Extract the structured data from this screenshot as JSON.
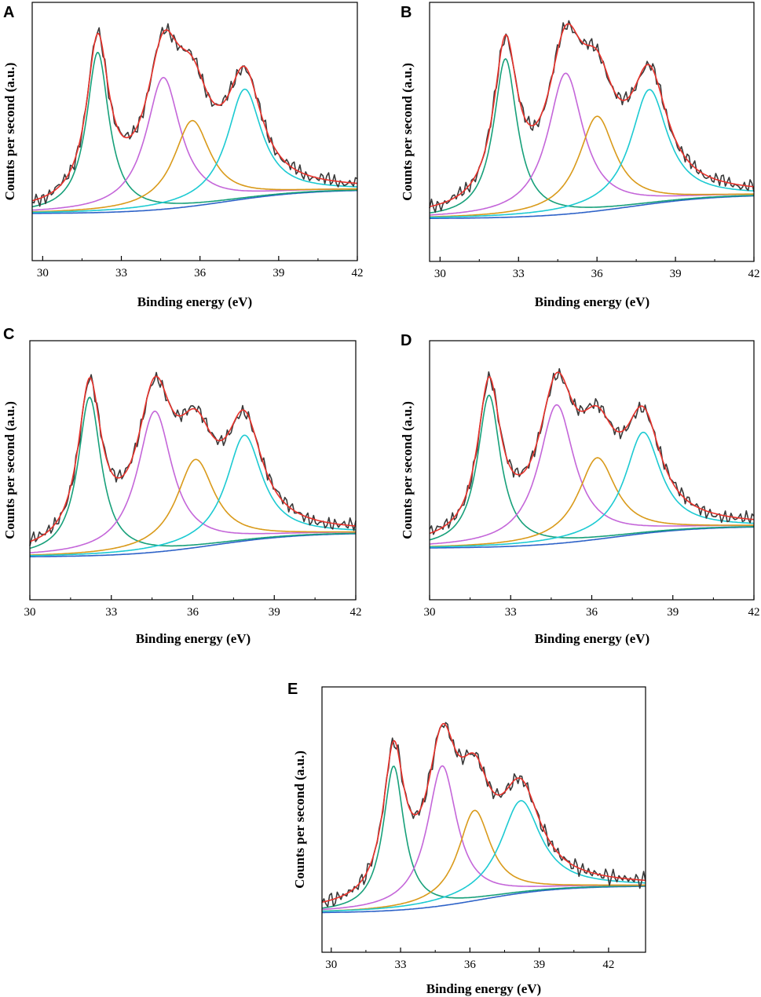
{
  "figure": {
    "description_colors": {
      "raw": "#3a3a3a",
      "envelope": "#e8322b",
      "peak1": "#17a07a",
      "peak2": "#c466d9",
      "peak3": "#d99a1a",
      "peak4": "#1ccad2",
      "background": "#2d62c8"
    }
  },
  "chart_data": [
    {
      "panel": "A",
      "type": "line",
      "xlabel": "Binding energy (eV)",
      "ylabel": "Counts per second (a.u.)",
      "xlim": [
        29.6,
        42
      ],
      "ylim": [
        0,
        1
      ],
      "xticks": [
        30,
        33,
        36,
        39,
        42
      ],
      "xtick_labels": [
        "30",
        "33",
        "36",
        "39",
        "42"
      ],
      "baseline": {
        "start": 0.12,
        "end": 0.23,
        "center": 37.0,
        "width": 1.6
      },
      "peaks": [
        {
          "name": "peak1",
          "center": 32.1,
          "amplitude": 0.73,
          "width": 0.52
        },
        {
          "name": "peak2",
          "center": 34.6,
          "amplitude": 0.6,
          "width": 0.8
        },
        {
          "name": "peak3",
          "center": 35.7,
          "amplitude": 0.39,
          "width": 0.85
        },
        {
          "name": "peak4",
          "center": 37.7,
          "amplitude": 0.5,
          "width": 0.8
        }
      ],
      "series": [
        {
          "name": "raw data",
          "color_key": "raw"
        },
        {
          "name": "envelope fit",
          "color_key": "envelope"
        },
        {
          "name": "peak1",
          "color_key": "peak1"
        },
        {
          "name": "peak2",
          "color_key": "peak2"
        },
        {
          "name": "peak3",
          "color_key": "peak3"
        },
        {
          "name": "peak4",
          "color_key": "peak4"
        },
        {
          "name": "background",
          "color_key": "background"
        }
      ]
    },
    {
      "panel": "B",
      "type": "line",
      "xlabel": "Binding energy (eV)",
      "ylabel": "Counts per second (a.u.)",
      "xlim": [
        29.6,
        42
      ],
      "ylim": [
        0,
        1
      ],
      "xticks": [
        30,
        33,
        36,
        39,
        42
      ],
      "xtick_labels": [
        "30",
        "33",
        "36",
        "39",
        "42"
      ],
      "baseline": {
        "start": 0.1,
        "end": 0.21,
        "center": 37.3,
        "width": 1.7
      },
      "peaks": [
        {
          "name": "peak1",
          "center": 32.5,
          "amplitude": 0.72,
          "width": 0.55
        },
        {
          "name": "peak2",
          "center": 34.8,
          "amplitude": 0.64,
          "width": 0.82
        },
        {
          "name": "peak3",
          "center": 36.0,
          "amplitude": 0.43,
          "width": 0.85
        },
        {
          "name": "peak4",
          "center": 38.0,
          "amplitude": 0.52,
          "width": 0.85
        }
      ],
      "series": [
        {
          "name": "raw data",
          "color_key": "raw"
        },
        {
          "name": "envelope fit",
          "color_key": "envelope"
        },
        {
          "name": "peak1",
          "color_key": "peak1"
        },
        {
          "name": "peak2",
          "color_key": "peak2"
        },
        {
          "name": "peak3",
          "color_key": "peak3"
        },
        {
          "name": "peak4",
          "color_key": "peak4"
        },
        {
          "name": "background",
          "color_key": "background"
        }
      ]
    },
    {
      "panel": "C",
      "type": "line",
      "xlabel": "Binding energy (eV)",
      "ylabel": "Counts per second (a.u.)",
      "xlim": [
        30,
        42
      ],
      "ylim": [
        0,
        1
      ],
      "xticks": [
        30,
        33,
        36,
        39,
        42
      ],
      "xtick_labels": [
        "30",
        "33",
        "36",
        "39",
        "42"
      ],
      "baseline": {
        "start": 0.1,
        "end": 0.21,
        "center": 36.8,
        "width": 1.6
      },
      "peaks": [
        {
          "name": "peak1",
          "center": 32.2,
          "amplitude": 0.72,
          "width": 0.52
        },
        {
          "name": "peak2",
          "center": 34.6,
          "amplitude": 0.64,
          "width": 0.78
        },
        {
          "name": "peak3",
          "center": 36.1,
          "amplitude": 0.4,
          "width": 0.85
        },
        {
          "name": "peak4",
          "center": 37.9,
          "amplitude": 0.48,
          "width": 0.8
        }
      ],
      "series": [
        {
          "name": "raw data",
          "color_key": "raw"
        },
        {
          "name": "envelope fit",
          "color_key": "envelope"
        },
        {
          "name": "peak1",
          "color_key": "peak1"
        },
        {
          "name": "peak2",
          "color_key": "peak2"
        },
        {
          "name": "peak3",
          "color_key": "peak3"
        },
        {
          "name": "peak4",
          "color_key": "peak4"
        },
        {
          "name": "background",
          "color_key": "background"
        }
      ]
    },
    {
      "panel": "D",
      "type": "line",
      "xlabel": "Binding energy (eV)",
      "ylabel": "Counts per second (a.u.)",
      "xlim": [
        30,
        42
      ],
      "ylim": [
        0,
        1
      ],
      "xticks": [
        30,
        33,
        36,
        39,
        42
      ],
      "xtick_labels": [
        "30",
        "33",
        "36",
        "39",
        "42"
      ],
      "baseline": {
        "start": 0.14,
        "end": 0.24,
        "center": 36.8,
        "width": 1.6
      },
      "peaks": [
        {
          "name": "peak1",
          "center": 32.2,
          "amplitude": 0.69,
          "width": 0.52
        },
        {
          "name": "peak2",
          "center": 34.7,
          "amplitude": 0.63,
          "width": 0.8
        },
        {
          "name": "peak3",
          "center": 36.2,
          "amplitude": 0.37,
          "width": 0.85
        },
        {
          "name": "peak4",
          "center": 37.9,
          "amplitude": 0.46,
          "width": 0.8
        }
      ],
      "series": [
        {
          "name": "raw data",
          "color_key": "raw"
        },
        {
          "name": "envelope fit",
          "color_key": "envelope"
        },
        {
          "name": "peak1",
          "color_key": "peak1"
        },
        {
          "name": "peak2",
          "color_key": "peak2"
        },
        {
          "name": "peak3",
          "color_key": "peak3"
        },
        {
          "name": "peak4",
          "color_key": "peak4"
        },
        {
          "name": "background",
          "color_key": "background"
        }
      ]
    },
    {
      "panel": "E",
      "type": "line",
      "xlabel": "Binding energy (eV)",
      "ylabel": "Counts per second (a.u.)",
      "xlim": [
        29.6,
        43.6
      ],
      "ylim": [
        0,
        1
      ],
      "xticks": [
        30,
        33,
        36,
        39,
        42
      ],
      "xtick_labels": [
        "30",
        "33",
        "36",
        "39",
        "42"
      ],
      "baseline": {
        "start": 0.08,
        "end": 0.2,
        "center": 36.5,
        "width": 1.7
      },
      "peaks": [
        {
          "name": "peak1",
          "center": 32.7,
          "amplitude": 0.64,
          "width": 0.55
        },
        {
          "name": "peak2",
          "center": 34.8,
          "amplitude": 0.62,
          "width": 0.78
        },
        {
          "name": "peak3",
          "center": 36.2,
          "amplitude": 0.4,
          "width": 0.85
        },
        {
          "name": "peak4",
          "center": 38.2,
          "amplitude": 0.41,
          "width": 1.05
        }
      ],
      "series": [
        {
          "name": "raw data",
          "color_key": "raw"
        },
        {
          "name": "envelope fit",
          "color_key": "envelope"
        },
        {
          "name": "peak1",
          "color_key": "peak1"
        },
        {
          "name": "peak2",
          "color_key": "peak2"
        },
        {
          "name": "peak3",
          "color_key": "peak3"
        },
        {
          "name": "peak4",
          "color_key": "peak4"
        },
        {
          "name": "background",
          "color_key": "background"
        }
      ]
    }
  ]
}
